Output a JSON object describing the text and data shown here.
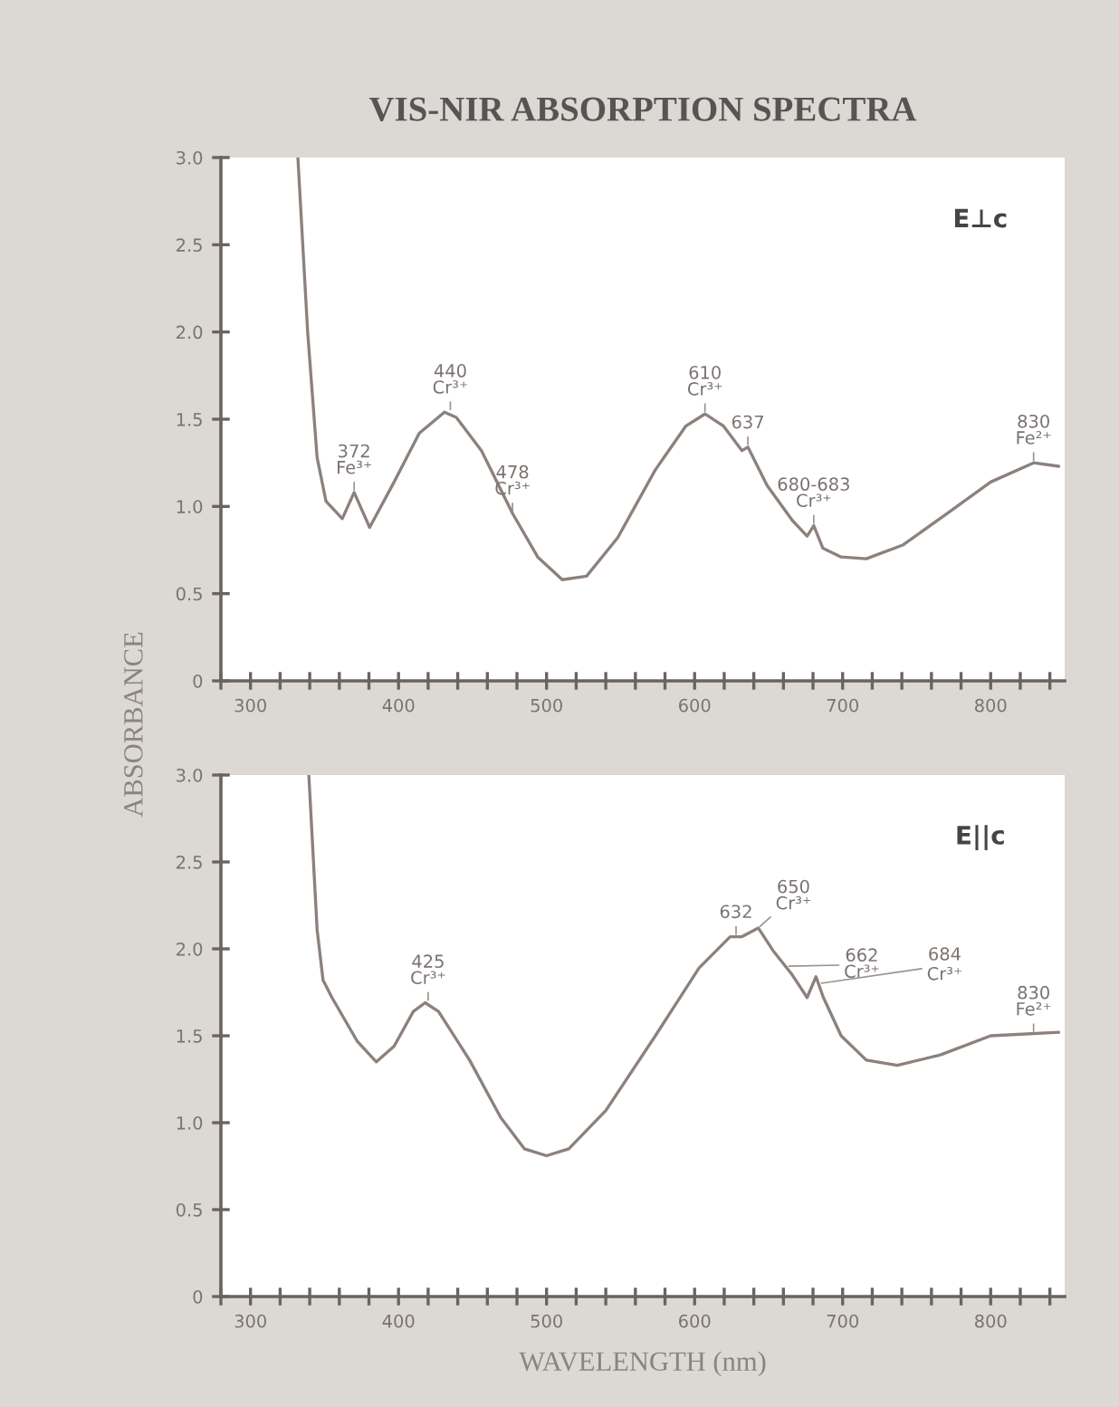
{
  "chart_data": [
    {
      "type": "line",
      "title": "VIS-NIR ABSORPTION SPECTRA",
      "ylabel": "ABSORBANCE",
      "xlim": [
        280,
        850
      ],
      "ylim": [
        0,
        3.0
      ],
      "xticks": [
        {
          "value": 280,
          "label": null
        },
        {
          "value": 300,
          "label": "300"
        },
        {
          "value": 320,
          "label": null
        },
        {
          "value": 340,
          "label": null
        },
        {
          "value": 360,
          "label": null
        },
        {
          "value": 380,
          "label": null
        },
        {
          "value": 400,
          "label": "400"
        },
        {
          "value": 420,
          "label": null
        },
        {
          "value": 440,
          "label": null
        },
        {
          "value": 460,
          "label": null
        },
        {
          "value": 480,
          "label": null
        },
        {
          "value": 500,
          "label": "500"
        },
        {
          "value": 520,
          "label": null
        },
        {
          "value": 540,
          "label": null
        },
        {
          "value": 560,
          "label": null
        },
        {
          "value": 580,
          "label": null
        },
        {
          "value": 600,
          "label": "600"
        },
        {
          "value": 620,
          "label": null
        },
        {
          "value": 640,
          "label": null
        },
        {
          "value": 660,
          "label": null
        },
        {
          "value": 680,
          "label": null
        },
        {
          "value": 700,
          "label": "700"
        },
        {
          "value": 720,
          "label": null
        },
        {
          "value": 740,
          "label": null
        },
        {
          "value": 760,
          "label": null
        },
        {
          "value": 780,
          "label": null
        },
        {
          "value": 800,
          "label": "800"
        },
        {
          "value": 820,
          "label": null
        },
        {
          "value": 840,
          "label": null
        }
      ],
      "yticks": [
        0,
        0.5,
        {
          "value": 1,
          "label": "1.0"
        },
        1.5,
        {
          "value": 2,
          "label": "2.0"
        },
        2.5,
        {
          "value": 3,
          "label": "3.0"
        }
      ],
      "series": [
        {
          "color": "#8c817c",
          "x": [
            332,
            338.6,
            345,
            351,
            362,
            370,
            380.5,
            397,
            414,
            431,
            439,
            456,
            477,
            494,
            510.6,
            527,
            548,
            573.5,
            594,
            607,
            619.6,
            632,
            636,
            649,
            666,
            676,
            680.5,
            686.7,
            699,
            716,
            741,
            770.6,
            800,
            829,
            846
          ],
          "values": [
            3.0,
            2.0,
            1.28,
            1.03,
            0.93,
            1.08,
            0.88,
            1.14,
            1.42,
            1.54,
            1.51,
            1.32,
            0.96,
            0.71,
            0.58,
            0.6,
            0.82,
            1.21,
            1.46,
            1.53,
            1.46,
            1.32,
            1.34,
            1.12,
            0.92,
            0.83,
            0.89,
            0.76,
            0.71,
            0.7,
            0.78,
            0.96,
            1.14,
            1.25,
            1.23
          ]
        }
      ],
      "annotations": [
        {
          "text": "372\nFe³⁺",
          "x": 370,
          "y": 1.08
        },
        {
          "text": "440\nCr³⁺",
          "x": 435,
          "y": 1.54
        },
        {
          "text": "478\nCr³⁺",
          "x": 477,
          "y": 0.96
        },
        {
          "text": "610\nCr³⁺",
          "x": 607,
          "y": 1.53
        },
        {
          "text": "637",
          "x": 636,
          "y": 1.34
        },
        {
          "text": "680-683\nCr³⁺",
          "x": 680.5,
          "y": 0.89
        },
        {
          "text": "830\nFe²⁺",
          "x": 829,
          "y": 1.25
        },
        "E⊥c"
      ]
    },
    {
      "type": "line",
      "xlabel": "WAVELENGTH (nm)",
      "xlim": [
        280,
        850
      ],
      "ylim": [
        0,
        3.0
      ],
      "xticks": [
        {
          "value": 280,
          "label": null
        },
        {
          "value": 300,
          "label": "300"
        },
        {
          "value": 320,
          "label": null
        },
        {
          "value": 340,
          "label": null
        },
        {
          "value": 360,
          "label": null
        },
        {
          "value": 380,
          "label": null
        },
        {
          "value": 400,
          "label": "400"
        },
        {
          "value": 420,
          "label": null
        },
        {
          "value": 440,
          "label": null
        },
        {
          "value": 460,
          "label": null
        },
        {
          "value": 480,
          "label": null
        },
        {
          "value": 500,
          "label": "500"
        },
        {
          "value": 520,
          "label": null
        },
        {
          "value": 540,
          "label": null
        },
        {
          "value": 560,
          "label": null
        },
        {
          "value": 580,
          "label": null
        },
        {
          "value": 600,
          "label": "600"
        },
        {
          "value": 620,
          "label": null
        },
        {
          "value": 640,
          "label": null
        },
        {
          "value": 660,
          "label": null
        },
        {
          "value": 680,
          "label": null
        },
        {
          "value": 700,
          "label": "700"
        },
        {
          "value": 720,
          "label": null
        },
        {
          "value": 740,
          "label": null
        },
        {
          "value": 760,
          "label": null
        },
        {
          "value": 780,
          "label": null
        },
        {
          "value": 800,
          "label": "800"
        },
        {
          "value": 820,
          "label": null
        },
        {
          "value": 840,
          "label": null
        }
      ],
      "yticks": [
        0,
        0.5,
        {
          "value": 1,
          "label": "1.0"
        },
        1.5,
        {
          "value": 2,
          "label": "2.0"
        },
        2.5,
        {
          "value": 3,
          "label": "3.0"
        }
      ],
      "series": [
        {
          "color": "#8c817c",
          "x": [
            339.4,
            345,
            349,
            355,
            372,
            385,
            397,
            410,
            418,
            427,
            448,
            469,
            485,
            500,
            515,
            540,
            573.5,
            603,
            624,
            632,
            643,
            653,
            666,
            676,
            682,
            687,
            699,
            716,
            737,
            766,
            800,
            846
          ],
          "values": [
            3.0,
            2.11,
            1.82,
            1.72,
            1.47,
            1.35,
            1.44,
            1.64,
            1.69,
            1.64,
            1.36,
            1.03,
            0.85,
            0.81,
            0.85,
            1.07,
            1.5,
            1.89,
            2.07,
            2.07,
            2.12,
            1.99,
            1.85,
            1.72,
            1.84,
            1.72,
            1.5,
            1.36,
            1.33,
            1.39,
            1.5,
            1.52
          ]
        }
      ],
      "annotations": [
        {
          "text": "425\nCr³⁺",
          "x": 420,
          "y": 1.69
        },
        {
          "text": "632",
          "x": 628,
          "y": 2.07
        },
        {
          "text": "650\nCr³⁺",
          "x": 643,
          "y": 2.12
        },
        {
          "text": "662\nCr³⁺",
          "x": 662,
          "y": 1.9
        },
        {
          "text": "684\nCr³⁺",
          "x": 684,
          "y": 1.8
        },
        {
          "text": "830\nFe²⁺",
          "x": 829,
          "y": 1.51
        },
        "E||c"
      ]
    }
  ]
}
